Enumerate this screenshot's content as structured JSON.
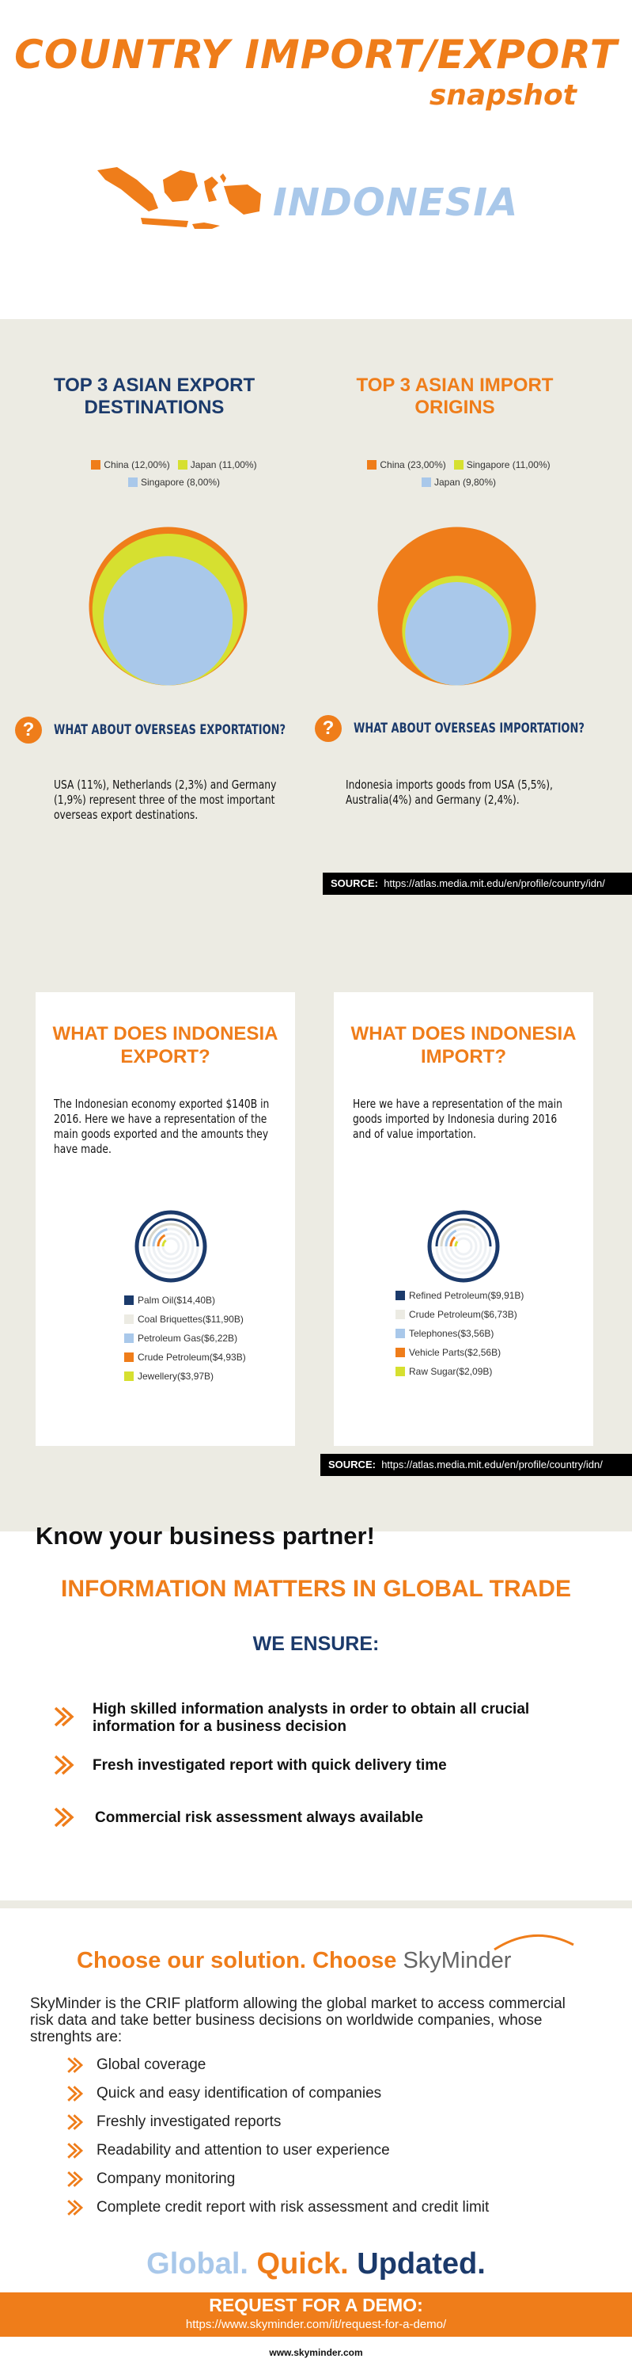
{
  "header": {
    "title": "COUNTRY IMPORT/EXPORT",
    "subtitle": "snapshot",
    "country": "INDONESIA",
    "map_icon": "indonesia-map-icon"
  },
  "colors": {
    "orange": "#ef7d1a",
    "navy": "#1b3a6b",
    "light_blue": "#a9c8ea",
    "yellow": "#d6e030",
    "beige": "#ecebe3"
  },
  "export_dest": {
    "title": "TOP 3 ASIAN EXPORT DESTINATIONS",
    "question": "WHAT ABOUT OVERSEAS EXPORTATION?",
    "text": "USA (11%), Netherlands (2,3%) and Germany (1,9%) represent three of the most important overseas export destinations."
  },
  "import_orig": {
    "title": "TOP 3 ASIAN IMPORT ORIGINS",
    "question": "WHAT ABOUT OVERSEAS IMPORTATION?",
    "text": "Indonesia  imports goods from USA (5,5%), Australia(4%) and Germany (2,4%)."
  },
  "source": {
    "label": "SOURCE:",
    "url": "https://atlas.media.mit.edu/en/profile/country/idn/"
  },
  "export_card": {
    "title": "WHAT DOES INDONESIA EXPORT?",
    "text": "The Indonesian economy exported $140B in 2016. Here we have a representation of the main goods exported and the amounts they have made."
  },
  "import_card": {
    "title": "WHAT DOES INDONESIA IMPORT?",
    "text": "Here we have a representation of the main goods imported by Indonesia during 2016 and of value importation."
  },
  "chart_data": [
    {
      "type": "area",
      "name": "export-destinations-circles",
      "categories": [
        "China",
        "Japan",
        "Singapore"
      ],
      "values": [
        12.0,
        11.0,
        8.0
      ],
      "legend_labels": [
        "China (12,00%)",
        "Japan (11,00%)",
        "Singapore (8,00%)"
      ],
      "colors": [
        "#ef7d1a",
        "#d6e030",
        "#a9c8ea"
      ]
    },
    {
      "type": "area",
      "name": "import-origins-circles",
      "categories": [
        "China",
        "Singapore",
        "Japan"
      ],
      "values": [
        23.0,
        11.0,
        9.8
      ],
      "legend_labels": [
        "China (23,00%)",
        "Singapore (11,00%)",
        "Japan (9,80%)"
      ],
      "colors": [
        "#ef7d1a",
        "#d6e030",
        "#a9c8ea"
      ]
    },
    {
      "type": "pie",
      "name": "export-goods-radial",
      "categories": [
        "Palm Oil",
        "Coal Briquettes",
        "Petroleum Gas",
        "Crude Petroleum",
        "Jewellery"
      ],
      "values": [
        14.4,
        11.9,
        6.22,
        4.93,
        3.97
      ],
      "legend_labels": [
        "Palm Oil($14,40B)",
        "Coal Briquettes($11,90B)",
        "Petroleum Gas($6,22B)",
        "Crude Petroleum($4,93B)",
        "Jewellery($3,97B)"
      ],
      "colors": [
        "#1b3a6b",
        "#ecebe3",
        "#a9c8ea",
        "#ef7d1a",
        "#d6e030"
      ]
    },
    {
      "type": "pie",
      "name": "import-goods-radial",
      "categories": [
        "Refined Petroleum",
        "Crude Petroleum",
        "Telephones",
        "Vehicle Parts",
        "Raw Sugar"
      ],
      "values": [
        9.91,
        6.73,
        3.56,
        2.56,
        2.09
      ],
      "legend_labels": [
        "Refined Petroleum($9,91B)",
        "Crude Petroleum($6,73B)",
        "Telephones($3,56B)",
        "Vehicle Parts($2,56B)",
        "Raw Sugar($2,09B)"
      ],
      "colors": [
        "#1b3a6b",
        "#ecebe3",
        "#a9c8ea",
        "#ef7d1a",
        "#d6e030"
      ]
    }
  ],
  "partner": {
    "heading": "Know your business partner!",
    "tagline": "INFORMATION MATTERS IN GLOBAL TRADE",
    "ensure_title": "WE ENSURE:",
    "items": [
      "High skilled information analysts in order to obtain all crucial information for a business decision",
      "Fresh investigated report with quick delivery time",
      "Commercial risk assessment always available"
    ]
  },
  "solution": {
    "heading": "Choose our solution. Choose",
    "brand": "SkyMinder",
    "intro": "SkyMinder is the CRIF platform allowing the global market to access commercial risk data and take better business decisions on worldwide companies, whose strenghts are:",
    "items": [
      "Global coverage",
      "Quick and easy identification of companies",
      "Freshly investigated reports",
      "Readability and attention to user experience",
      "Company monitoring",
      "Complete credit report with risk assessment and credit limit"
    ]
  },
  "slogan": {
    "w1": "Global.",
    "w2": "Quick.",
    "w3": "Updated."
  },
  "footer": {
    "cta": "REQUEST FOR A DEMO:",
    "cta_url": "https://www.skyminder.com/it/request-for-a-demo/",
    "site": "www.skyminder.com"
  }
}
